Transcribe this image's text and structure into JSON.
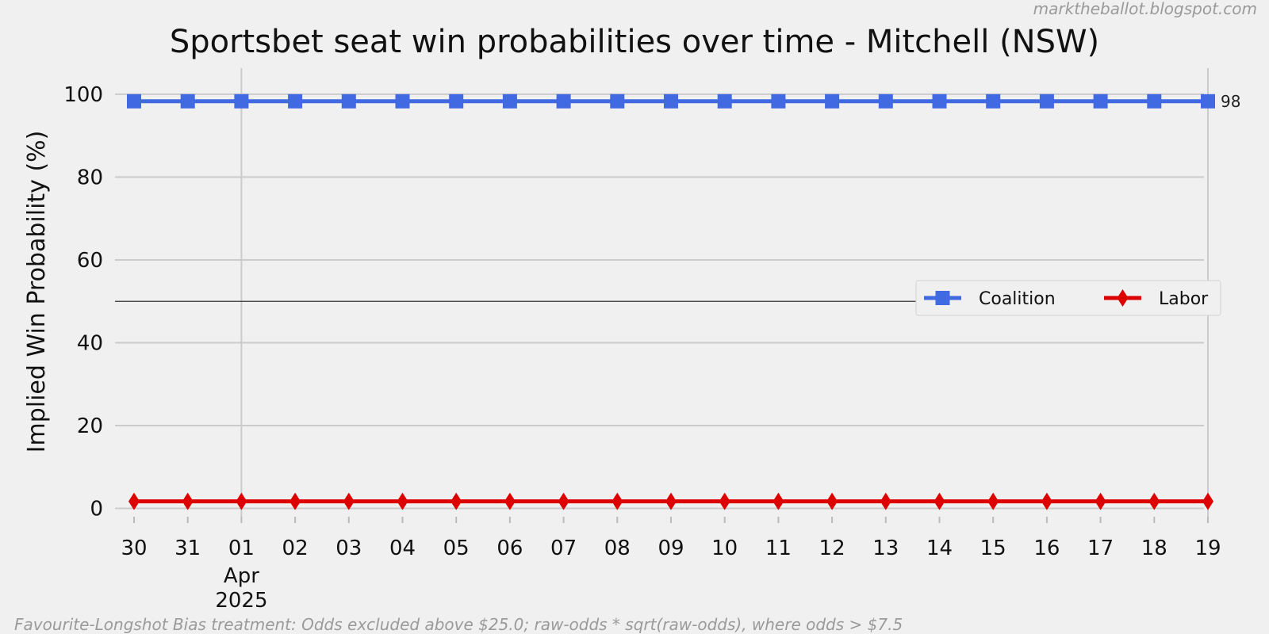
{
  "watermark": "marktheballot.blogspot.com",
  "footnote": "Favourite-Longshot Bias treatment: Odds excluded above $25.0; raw-odds * sqrt(raw-odds), where odds > $7.5",
  "chart_data": {
    "type": "line",
    "title": "Sportsbet seat win probabilities over time - Mitchell (NSW)",
    "xlabel": "",
    "ylabel": "Implied Win Probability (%)",
    "ylim": [
      -2,
      104
    ],
    "yticks": [
      0,
      20,
      40,
      60,
      80,
      100
    ],
    "reference_line": 50,
    "grid": true,
    "legend_position": "center-right",
    "x": [
      "2025-03-30",
      "2025-03-31",
      "2025-04-01",
      "2025-04-02",
      "2025-04-03",
      "2025-04-04",
      "2025-04-05",
      "2025-04-06",
      "2025-04-07",
      "2025-04-08",
      "2025-04-09",
      "2025-04-10",
      "2025-04-11",
      "2025-04-12",
      "2025-04-13",
      "2025-04-14",
      "2025-04-15",
      "2025-04-16",
      "2025-04-17",
      "2025-04-18",
      "2025-04-19"
    ],
    "x_tick_labels": [
      "30",
      "31",
      "01",
      "02",
      "03",
      "04",
      "05",
      "06",
      "07",
      "08",
      "09",
      "10",
      "11",
      "12",
      "13",
      "14",
      "15",
      "16",
      "17",
      "18",
      "19"
    ],
    "x_tick_sublabels": {
      "2": [
        "Apr",
        "2025"
      ]
    },
    "series": [
      {
        "name": "Coalition",
        "color": "#4169e1",
        "marker": "square",
        "values": [
          98.3,
          98.3,
          98.3,
          98.3,
          98.3,
          98.3,
          98.3,
          98.3,
          98.3,
          98.3,
          98.3,
          98.3,
          98.3,
          98.3,
          98.3,
          98.3,
          98.3,
          98.3,
          98.3,
          98.3,
          98.3
        ],
        "end_label": "98"
      },
      {
        "name": "Labor",
        "color": "#dd0000",
        "marker": "diamond",
        "values": [
          1.7,
          1.7,
          1.7,
          1.7,
          1.7,
          1.7,
          1.7,
          1.7,
          1.7,
          1.7,
          1.7,
          1.7,
          1.7,
          1.7,
          1.7,
          1.7,
          1.7,
          1.7,
          1.7,
          1.7,
          1.7
        ]
      }
    ]
  }
}
